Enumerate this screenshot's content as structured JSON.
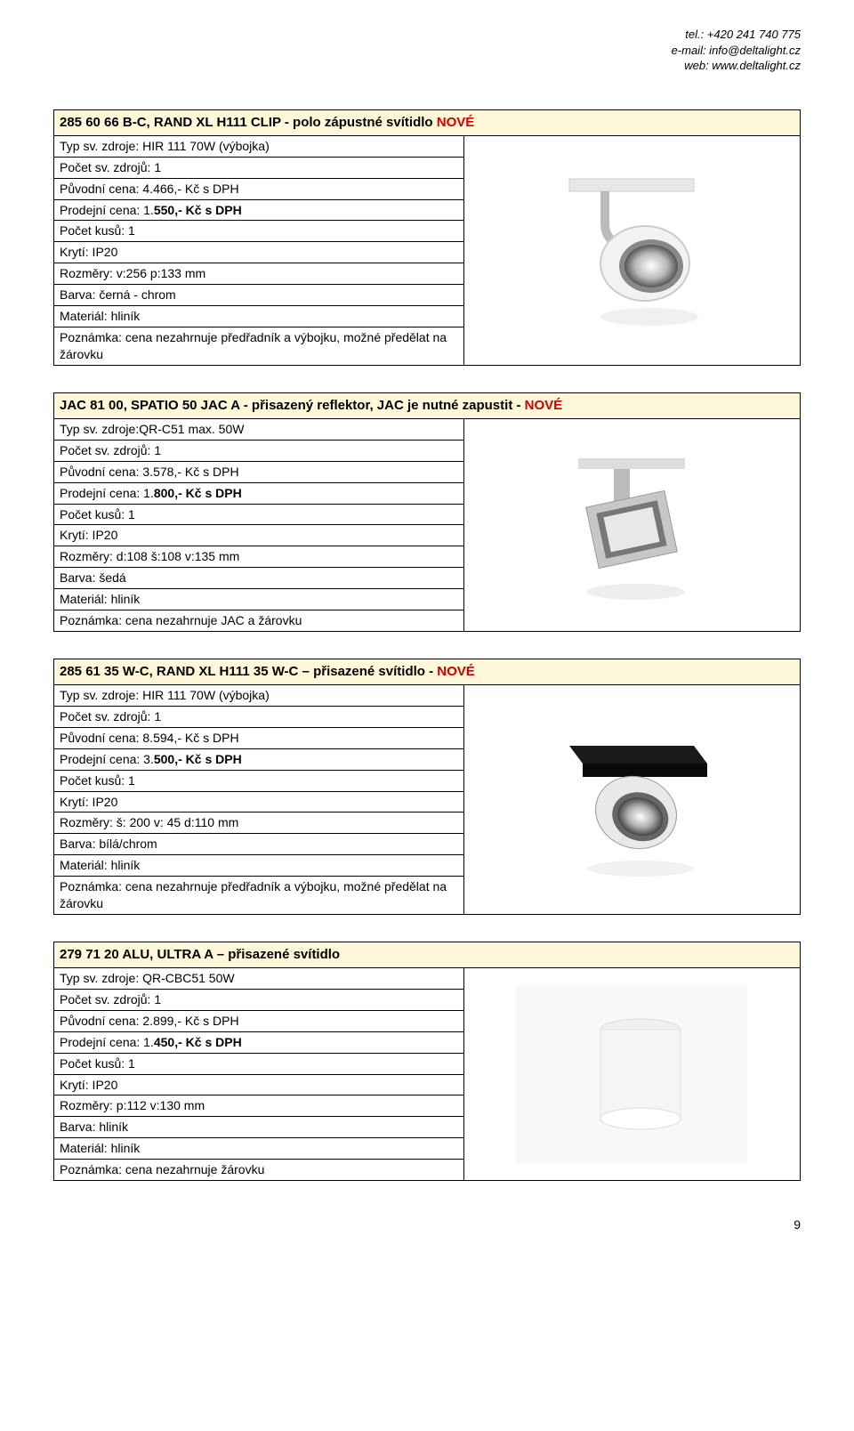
{
  "header": {
    "tel": "tel.: +420 241 740 775",
    "email": "e-mail: info@deltalight.cz",
    "web": "web: www.deltalight.cz"
  },
  "products": [
    {
      "title_main": "285 60 66 B-C, RAND XL H111 CLIP - polo zápustné svítidlo ",
      "title_tag": "NOVÉ",
      "rows": [
        "Typ sv. zdroje: HIR 111 70W (výbojka)",
        "Počet sv. zdrojů: 1",
        "Původní cena: 4.466,- Kč s DPH",
        {
          "label": "Prodejní cena: 1.",
          "bold": "550,- Kč s DPH"
        },
        "Počet kusů: 1",
        "Krytí: IP20",
        "Rozměry: v:256 p:133 mm",
        "Barva: černá - chrom",
        "Materiál: hliník",
        "Poznámka: cena nezahrnuje předřadník a výbojku, možné předělat na žárovku"
      ],
      "image": "spotlight1"
    },
    {
      "title_main": "JAC 81 00, SPATIO 50 JAC A - přisazený reflektor, JAC je nutné zapustit - ",
      "title_tag": "NOVÉ",
      "rows": [
        "Typ sv. zdroje:QR-C51 max. 50W",
        "Počet sv. zdrojů: 1",
        "Původní cena: 3.578,- Kč s DPH",
        {
          "label": "Prodejní cena: 1.",
          "bold": "800,- Kč s DPH"
        },
        "Počet kusů: 1",
        "Krytí: IP20",
        "Rozměry: d:108 š:108 v:135 mm",
        "Barva: šedá",
        "Materiál: hliník",
        "Poznámka: cena nezahrnuje JAC a žárovku"
      ],
      "image": "spotlight2"
    },
    {
      "title_main": "285 61 35 W-C, RAND XL H111 35 W-C – přisazené svítidlo  - ",
      "title_tag": "NOVÉ",
      "rows": [
        "Typ sv. zdroje: HIR 111 70W (výbojka)",
        "Počet sv. zdrojů: 1",
        "Původní cena: 8.594,- Kč s DPH",
        {
          "label": "Prodejní cena: 3.",
          "bold": "500,- Kč s DPH"
        },
        "Počet kusů: 1",
        "Krytí: IP20",
        "Rozměry: š: 200 v: 45 d:110 mm",
        "Barva: bílá/chrom",
        "Materiál: hliník",
        "Poznámka: cena nezahrnuje předřadník a výbojku, možné předělat na žárovku"
      ],
      "image": "spotlight3"
    },
    {
      "title_main": "279 71 20 ALU, ULTRA A  – přisazené svítidlo",
      "title_tag": "",
      "rows": [
        "Typ sv. zdroje: QR-CBC51 50W",
        "Počet sv. zdrojů: 1",
        "Původní cena: 2.899,- Kč s DPH",
        {
          "label": "Prodejní cena: 1.",
          "bold": "450,- Kč s DPH"
        },
        "Počet kusů: 1",
        "Krytí: IP20",
        "Rozměry: p:112 v:130 mm",
        "Barva: hliník",
        "Materiál: hliník",
        "Poznámka: cena nezahrnuje žárovku"
      ],
      "image": "cylinder"
    }
  ],
  "page_number": "9",
  "colors": {
    "title_bg": "#fff8d8",
    "nove": "#cc0000",
    "border": "#000000",
    "text": "#000000",
    "bg": "#ffffff"
  }
}
